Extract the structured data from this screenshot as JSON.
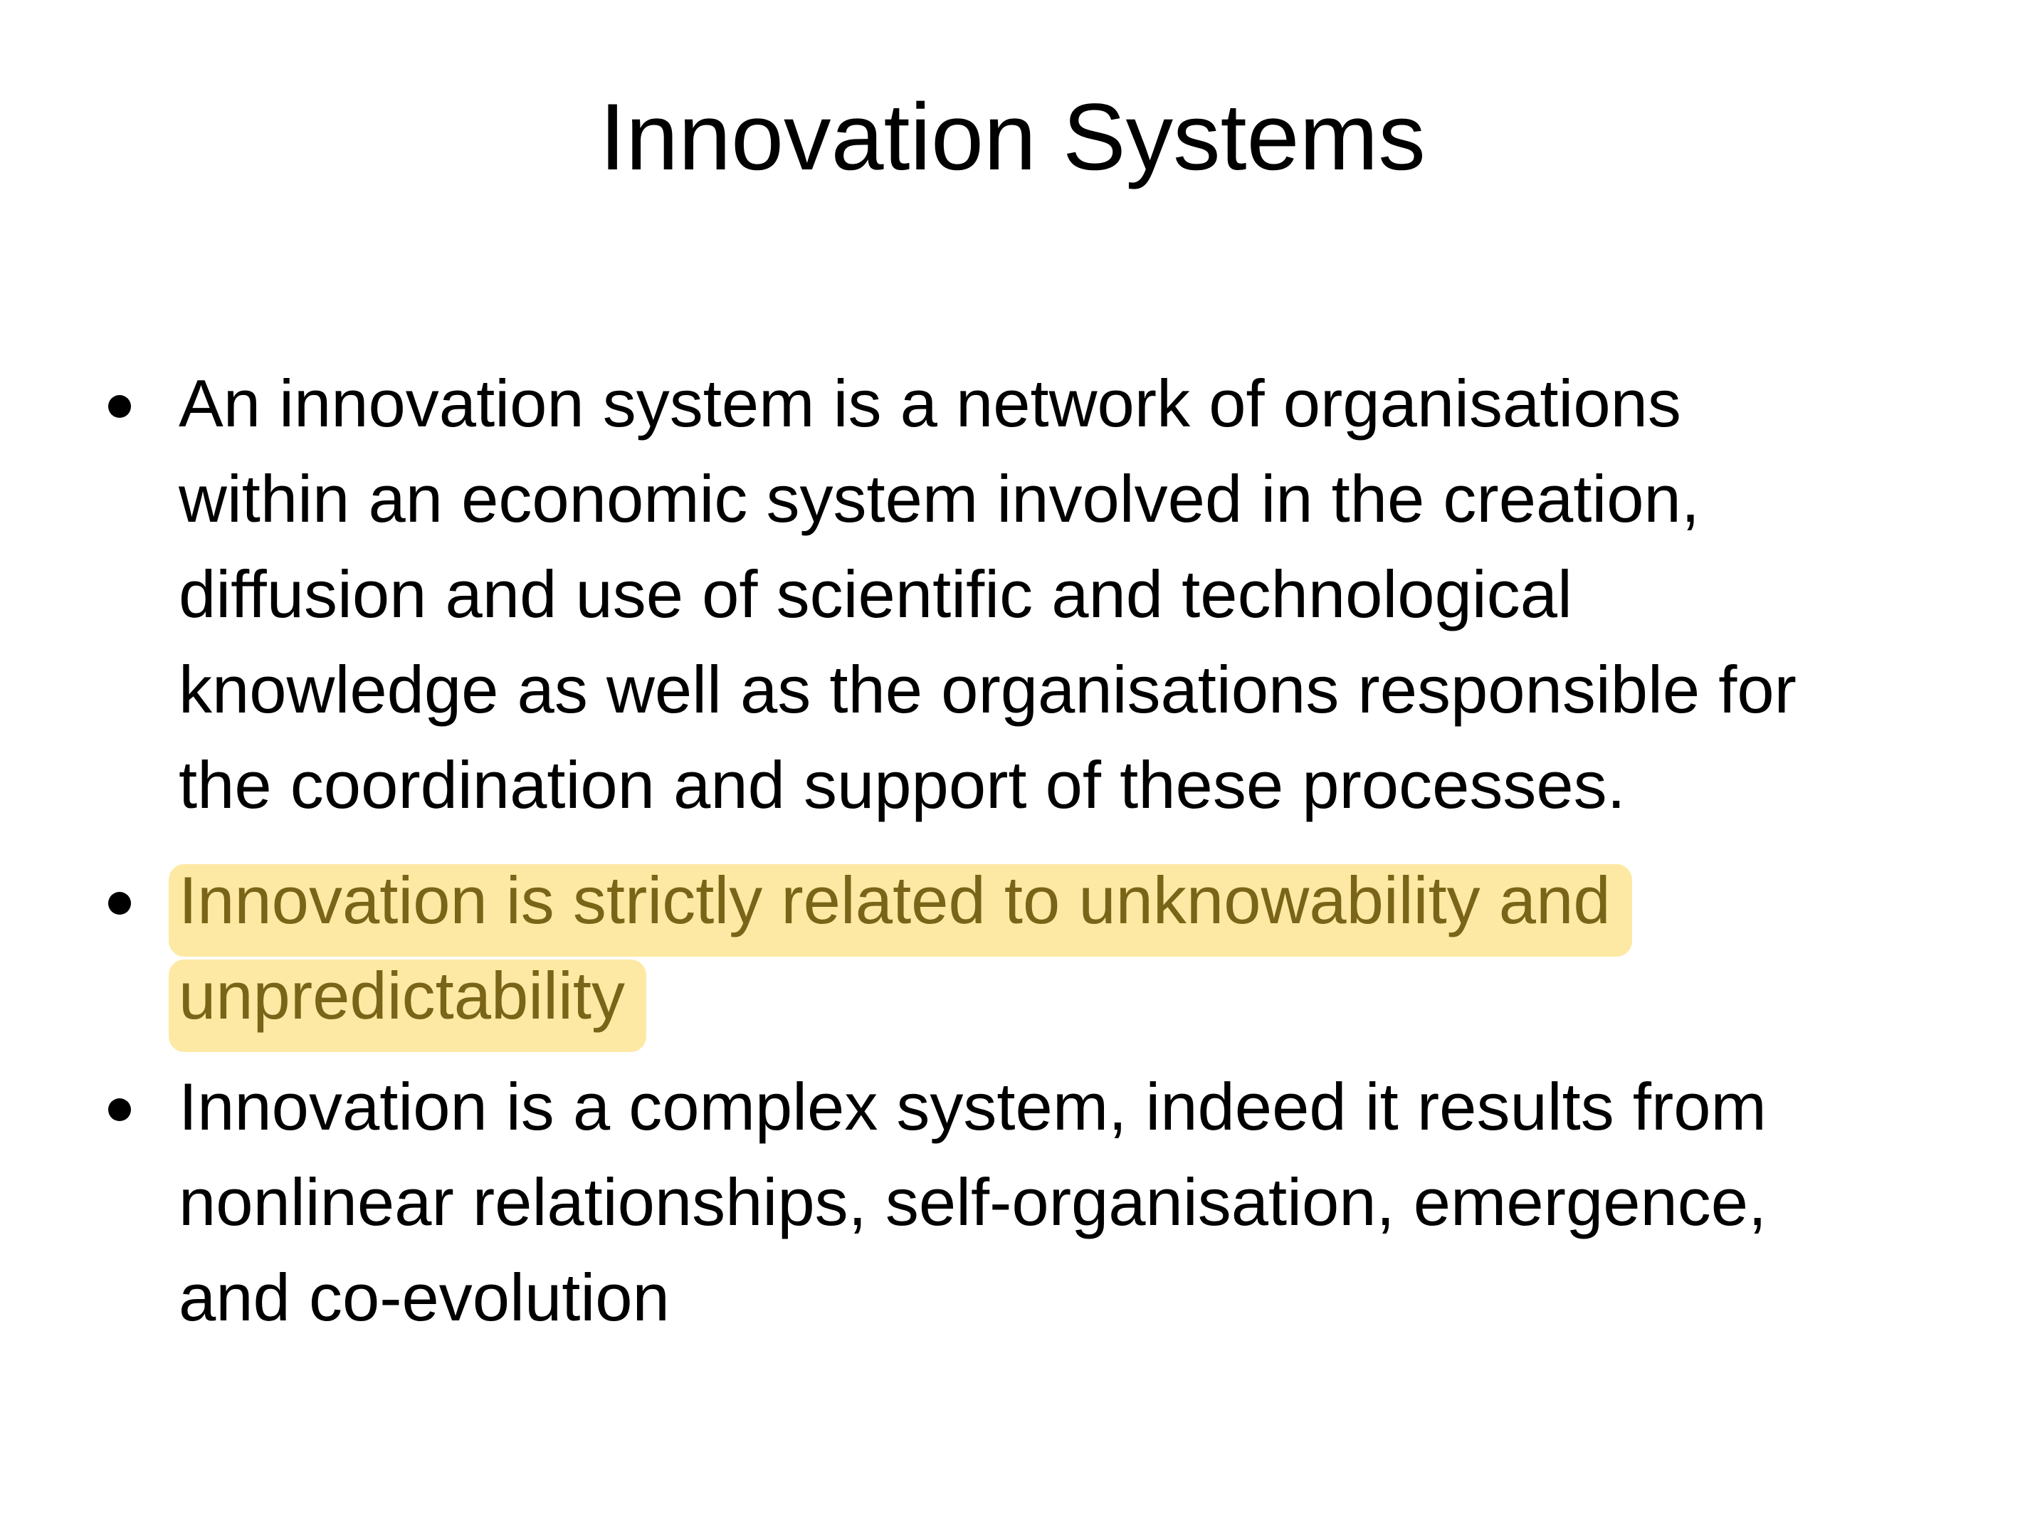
{
  "slide": {
    "title": "Innovation Systems",
    "highlight_color": "#fde9a4",
    "highlight_text_color": "#7a6418",
    "bullets": [
      {
        "lines": [
          "An innovation system is a network of organisations",
          "within an economic system involved in the creation,",
          "diffusion and use of scientific and technological",
          "knowledge as well as the organisations responsible for",
          "the coordination and support of these processes."
        ]
      },
      {
        "highlighted": true,
        "lines": [
          "Innovation is strictly related to unknowability and",
          "unpredictability"
        ]
      },
      {
        "lines": [
          "Innovation is a complex system, indeed it results from",
          "nonlinear relationships, self-organisation, emergence,",
          "and co-evolution"
        ]
      }
    ]
  }
}
